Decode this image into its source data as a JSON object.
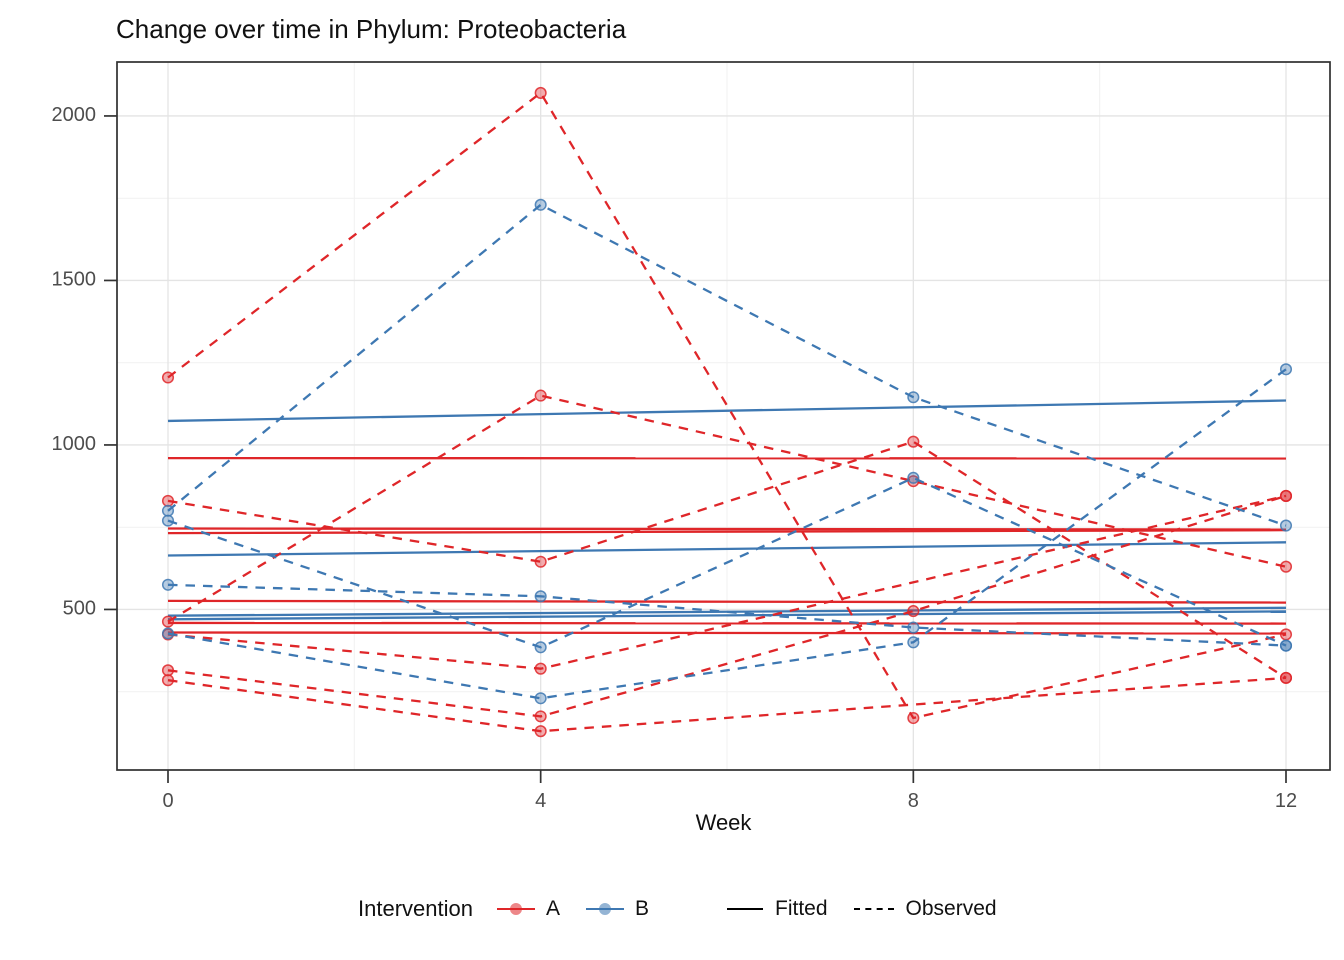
{
  "title": "Change over time in Phylum: Proteobacteria",
  "x_axis_title": "Week",
  "legend": {
    "title": "Intervention",
    "group_a_label": "A",
    "group_b_label": "B",
    "fitted_label": "Fitted",
    "observed_label": "Observed",
    "position": "bottom"
  },
  "colors": {
    "group_a": "#DF2629",
    "group_b": "#3E78B2",
    "grid_major": "#E4E4E4",
    "grid_minor": "#F1F1F1",
    "panel_border": "#2F2F2F",
    "tick_label": "#4D4D4D",
    "tick_mark": "#333333"
  },
  "chart_data": {
    "type": "line",
    "title": "Change over time in Phylum: Proteobacteria",
    "xlabel": "Week",
    "ylabel": "",
    "x_weeks": [
      0,
      4,
      8,
      12
    ],
    "x_minor_weeks": [
      2,
      6,
      10
    ],
    "y_major_ticks": [
      500,
      1000,
      1500,
      2000
    ],
    "y_minor_ticks": [
      250,
      750,
      1250,
      1750
    ],
    "ylim": [
      12,
      2164
    ],
    "xlim_weeks": [
      -0.55,
      12.47
    ],
    "grid": true,
    "legend_position": "bottom",
    "series": [
      {
        "name": "A",
        "role": "observed",
        "linetype": "dashed",
        "subjects": [
          [
            1205,
            2070,
            170,
            424
          ],
          [
            830,
            645,
            1010,
            292
          ],
          [
            463,
            1150,
            890,
            630
          ],
          [
            424,
            320,
            null,
            845
          ],
          [
            315,
            175,
            495,
            845
          ],
          [
            285,
            130,
            null,
            292
          ]
        ]
      },
      {
        "name": "A",
        "role": "fitted",
        "linetype": "solid",
        "lines_start_end": [
          [
            960,
            959
          ],
          [
            746,
            743
          ],
          [
            732,
            741
          ],
          [
            526,
            521
          ],
          [
            459,
            457
          ],
          [
            430,
            427
          ]
        ]
      },
      {
        "name": "B",
        "role": "observed",
        "linetype": "dashed",
        "subjects": [
          [
            800,
            1730,
            1145,
            755
          ],
          [
            770,
            385,
            900,
            390
          ],
          [
            575,
            540,
            445,
            390
          ],
          [
            427,
            230,
            400,
            1230
          ]
        ]
      },
      {
        "name": "B",
        "role": "fitted",
        "linetype": "solid",
        "lines_start_end": [
          [
            1073,
            1135
          ],
          [
            664,
            704
          ],
          [
            481,
            505
          ],
          [
            470,
            494
          ]
        ]
      }
    ]
  }
}
